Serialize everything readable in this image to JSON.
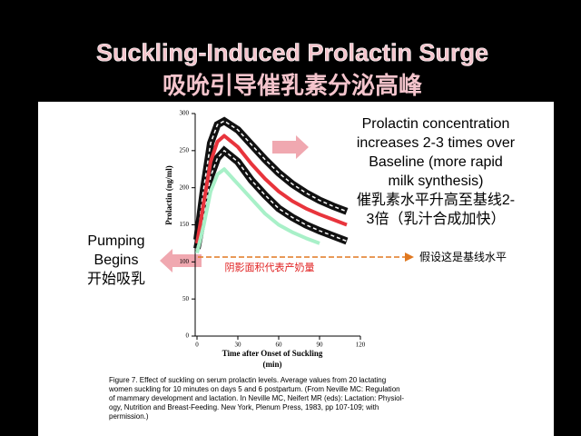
{
  "chart_data": {
    "type": "line",
    "title": "Suckling-Induced Prolactin Surge",
    "subtitle": "吸吮引导催乳素分泌高峰",
    "y_label": "Prolactin (ng/ml)",
    "x_label": [
      "Time after Onset of Suckling",
      "(min)"
    ],
    "x": [
      0,
      5,
      10,
      15,
      20,
      30,
      40,
      50,
      60,
      70,
      80,
      90,
      100,
      110
    ],
    "series": [
      {
        "color": "#ffffff",
        "dashed": true,
        "values": [
          130,
          200,
          260,
          285,
          290,
          278,
          258,
          238,
          220,
          205,
          193,
          183,
          175,
          168
        ]
      },
      {
        "color": "#ffffff",
        "dashed": true,
        "values": [
          118,
          165,
          215,
          240,
          250,
          235,
          210,
          190,
          172,
          160,
          150,
          142,
          135,
          128
        ]
      },
      {
        "color": "#e8343c",
        "dashed": false,
        "values": [
          125,
          180,
          235,
          262,
          270,
          255,
          232,
          212,
          195,
          182,
          172,
          164,
          157,
          150
        ]
      },
      {
        "color": "#a8f0c8",
        "dashed": false,
        "values": [
          112,
          150,
          195,
          218,
          225,
          205,
          185,
          165,
          150,
          140,
          132,
          125,
          null,
          null
        ]
      }
    ],
    "xlim": [
      0,
      120
    ],
    "xticks": [
      0,
      30,
      60,
      90,
      120
    ],
    "ylim": [
      0,
      300
    ],
    "yticks": [
      0,
      50,
      100,
      150,
      200,
      250,
      300
    ],
    "right_note": [
      "Prolactin concentration",
      "increases 2-3 times over",
      "Baseline (more rapid",
      "milk synthesis)",
      "催乳素水平升高至基线2-",
      "3倍（乳汁合成加快）"
    ],
    "left_note": [
      "Pumping",
      "Begins",
      "开始吸乳"
    ],
    "baseline_note": "假设这是基线水平",
    "area_note": "阴影面积代表产奶量",
    "caption": [
      "Figure 7. Effect of suckling on serum prolactin levels. Average values from 20 lactating",
      "women suckling for 10 minutes on days 5 and 6 postpartum. (From Neville MC: Regulation",
      "of mammary development and lactation. In Neville MC, Neifert MR (eds): Lactation: Physiol-",
      "ogy, Nutrition and Breast-Feeding. New York, Plenum Press, 1983, pp 107-109; with",
      "permission.)"
    ]
  }
}
